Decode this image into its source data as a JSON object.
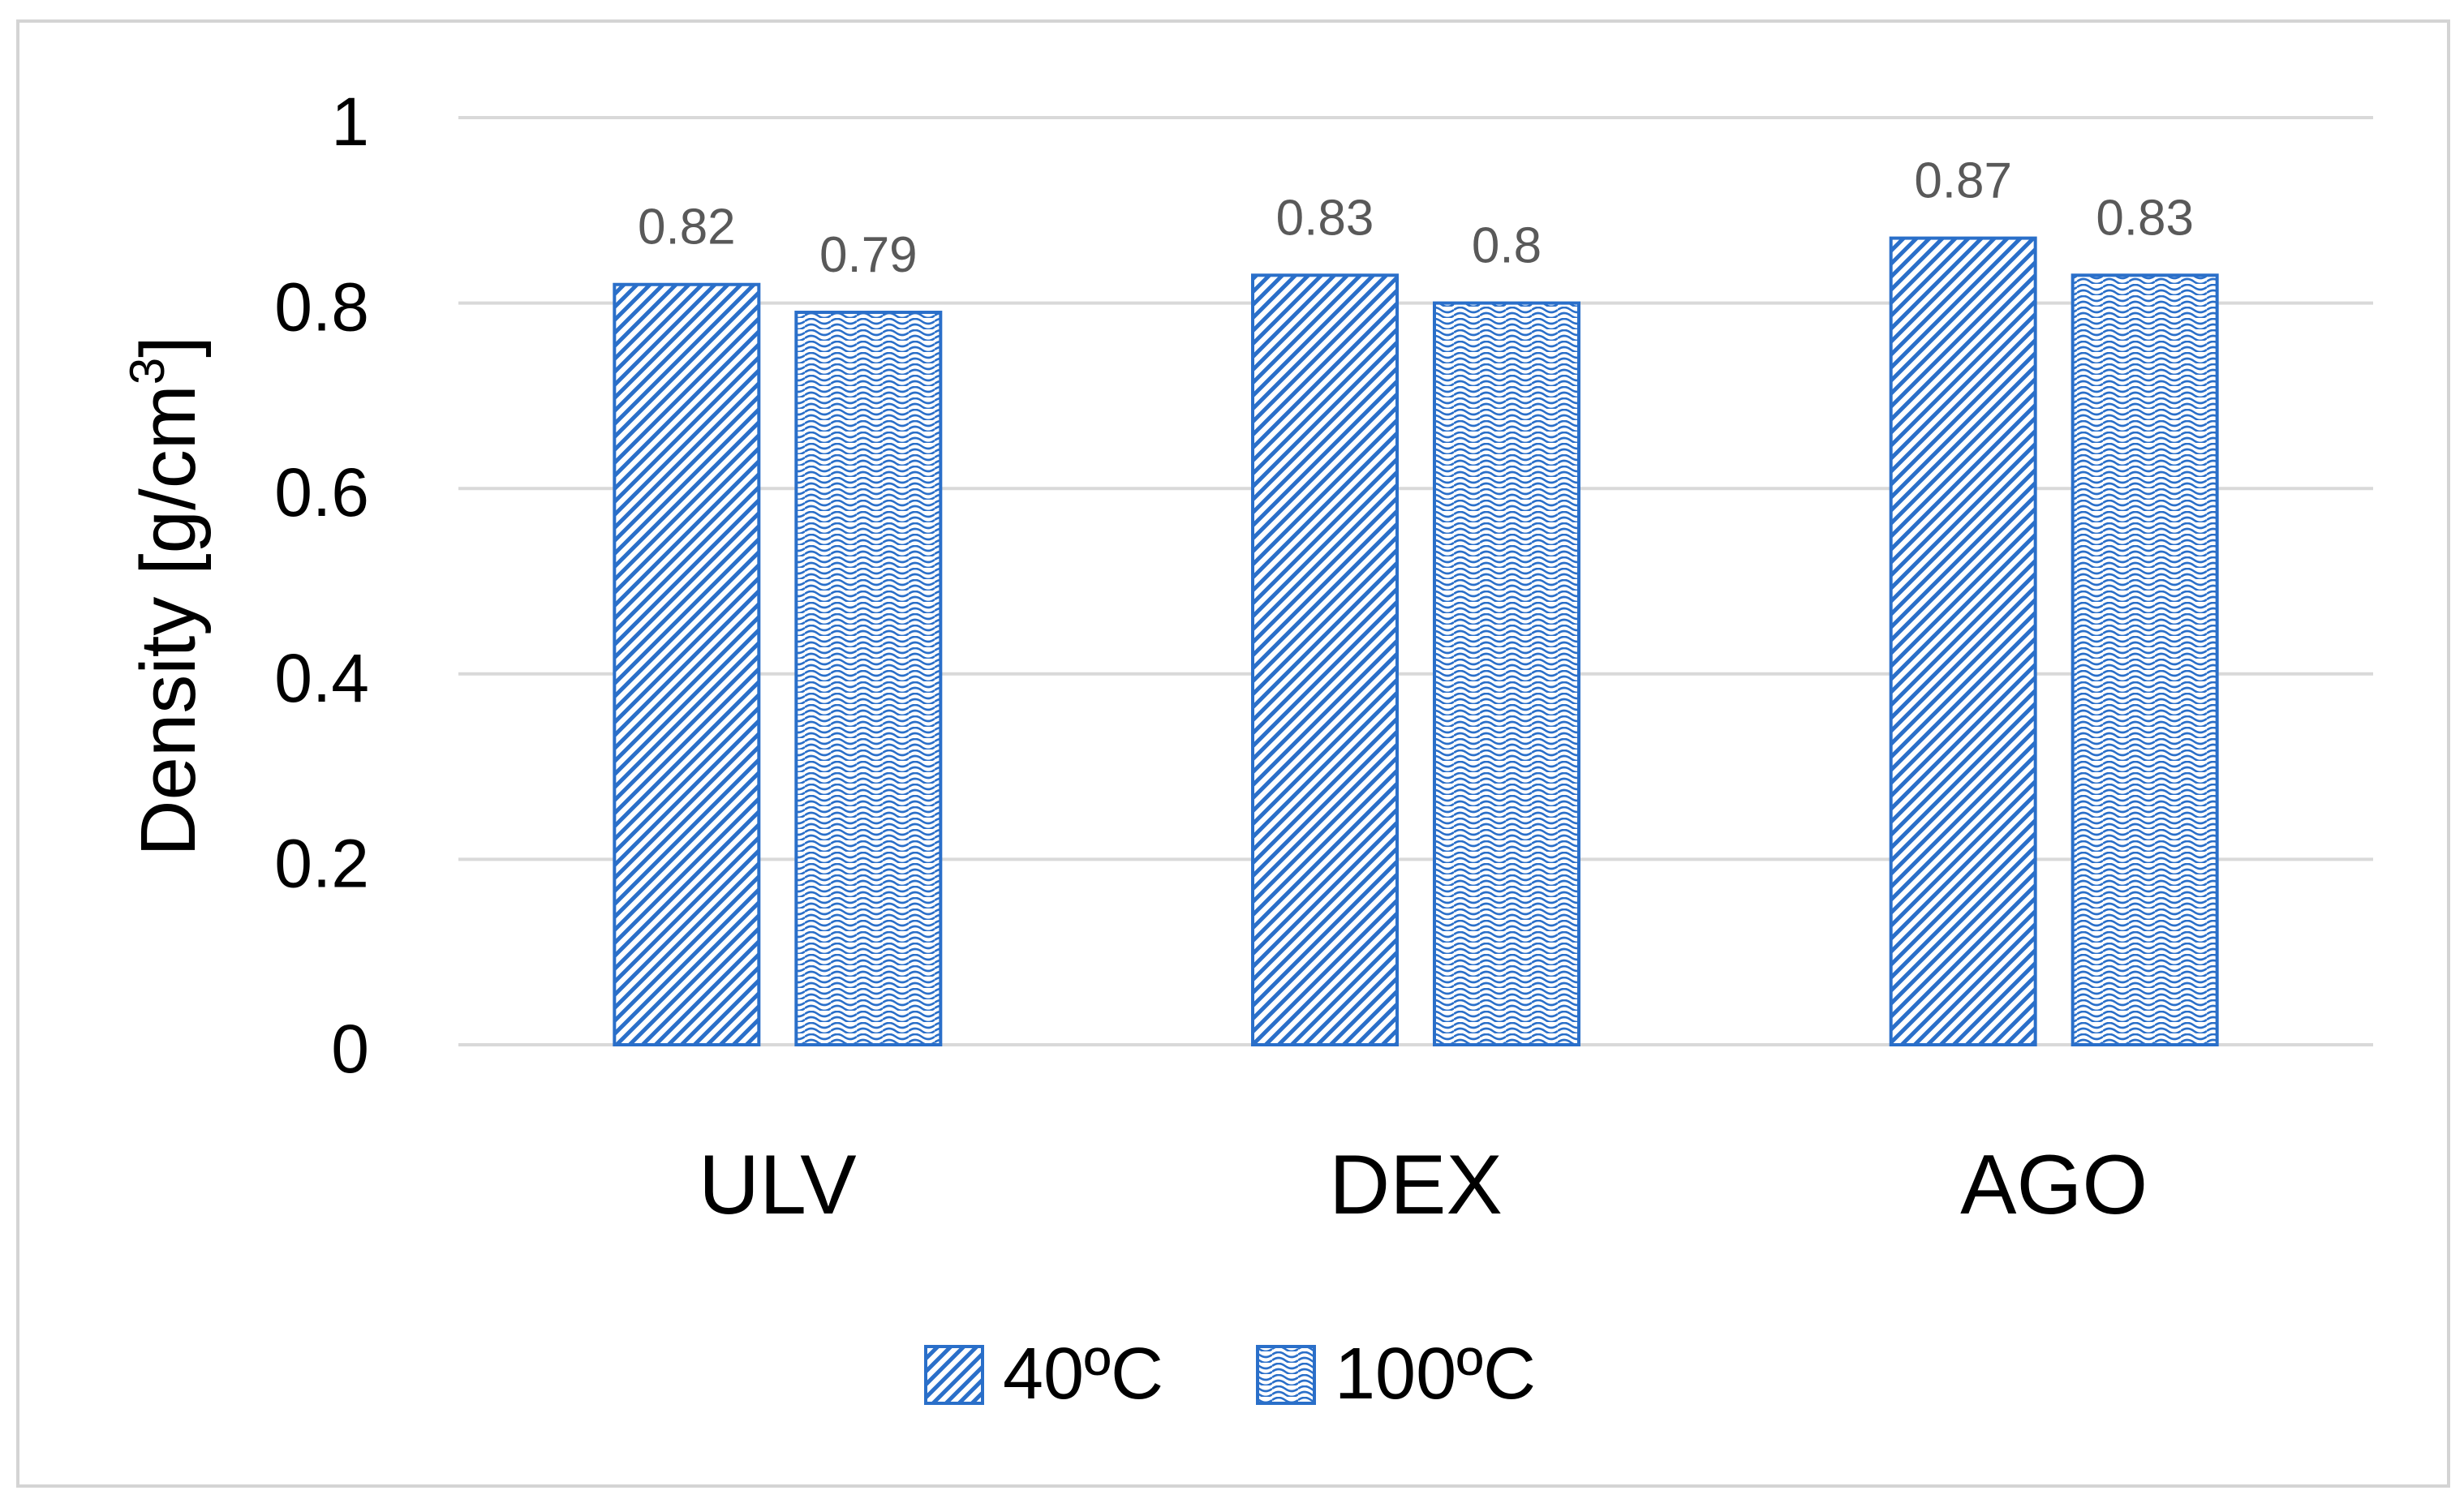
{
  "chart_data": {
    "type": "bar",
    "title": "",
    "xlabel": "",
    "ylabel": "Density [g/cm",
    "ylabel_superscript": "3",
    "ylabel_suffix": "]",
    "ylim": [
      0,
      1
    ],
    "y_ticks": [
      "0",
      "0.2",
      "0.4",
      "0.6",
      "0.8",
      "1"
    ],
    "grid": true,
    "legend_position": "bottom",
    "categories": [
      "ULV",
      "DEX",
      "AGO"
    ],
    "series": [
      {
        "name": "40ºC",
        "values": [
          0.82,
          0.83,
          0.87
        ],
        "labels": [
          "0.82",
          "0.83",
          "0.87"
        ],
        "pattern": "diagonal-stripes",
        "color": "#2a6fc9"
      },
      {
        "name": "100ºC",
        "values": [
          0.79,
          0.8,
          0.83
        ],
        "labels": [
          "0.79",
          "0.8",
          "0.83"
        ],
        "pattern": "wave",
        "color": "#2a6fc9"
      }
    ]
  }
}
